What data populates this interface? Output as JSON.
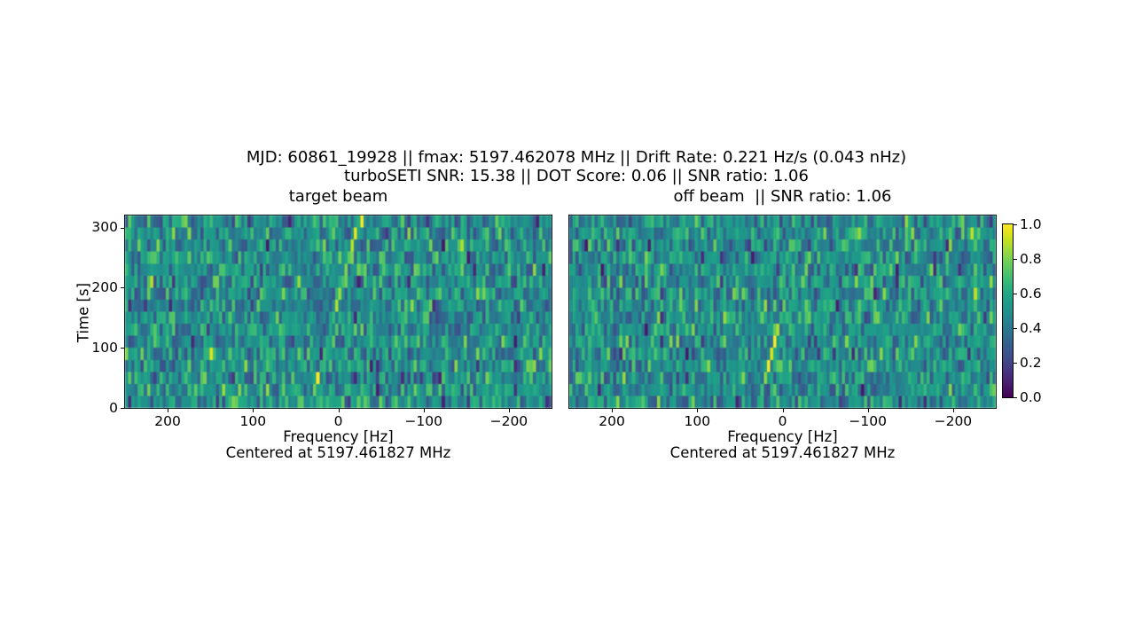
{
  "figure": {
    "title_line1": "MJD: 60861_19928 || fmax: 5197.462078 MHz || Drift Rate: 0.221 Hz/s (0.043 nHz)",
    "title_line2": "turboSETI SNR: 15.38 || DOT Score: 0.06 || SNR ratio: 1.06",
    "background_color": "#ffffff",
    "text_color": "#000000"
  },
  "chart_data": [
    {
      "type": "heatmap",
      "title": "target beam",
      "xlabel": "Frequency [Hz]",
      "xlabel2": "Centered at 5197.461827 MHz",
      "ylabel": "Time [s]",
      "x_tick_labels": [
        "200",
        "100",
        "0",
        "−100",
        "−200"
      ],
      "x_tick_values": [
        200,
        100,
        0,
        -100,
        -200
      ],
      "xlim": [
        250,
        -250
      ],
      "y_tick_labels": [
        "0",
        "100",
        "200",
        "300"
      ],
      "y_tick_values": [
        0,
        100,
        200,
        300
      ],
      "ylim": [
        0,
        320
      ],
      "colormap": "viridis",
      "vmin": 0.0,
      "vmax": 1.0,
      "rows": 16,
      "cols": 136,
      "noise": {
        "mean": 0.52,
        "sd": 0.115,
        "col_bias_sd": 0.035,
        "dark_prob": 0.1,
        "deep_dark_prob": 0.02,
        "bright_prob": 0.02
      },
      "drift_line": {
        "freq_start_hz": 33,
        "freq_end_hz": -24,
        "row_intensity_top_to_bottom": [
          1.0,
          0.97,
          0.9,
          0.75,
          0.62,
          0.7,
          0.85,
          0.88,
          0.66,
          0.6,
          0.62,
          0.68,
          0.64,
          1.0,
          0.78,
          0.6
        ],
        "description": "bright diagonal drifting narrowband signal"
      },
      "seed": 1337
    },
    {
      "type": "heatmap",
      "title": "off beam  || SNR ratio: 1.06",
      "xlabel": "Frequency [Hz]",
      "xlabel2": "Centered at 5197.461827 MHz",
      "ylabel": "",
      "x_tick_labels": [
        "200",
        "100",
        "0",
        "−100",
        "−200"
      ],
      "x_tick_values": [
        200,
        100,
        0,
        -100,
        -200
      ],
      "xlim": [
        250,
        -250
      ],
      "y_tick_labels": [],
      "y_tick_values": [],
      "ylim": [
        0,
        320
      ],
      "colormap": "viridis",
      "vmin": 0.0,
      "vmax": 1.0,
      "rows": 16,
      "cols": 136,
      "noise": {
        "mean": 0.52,
        "sd": 0.115,
        "col_bias_sd": 0.035,
        "dark_prob": 0.1,
        "deep_dark_prob": 0.02,
        "bright_prob": 0.02
      },
      "drift_line": {
        "freq_start_hz": 28,
        "freq_end_hz": -27,
        "row_intensity_top_to_bottom": [
          0.6,
          0.55,
          0.66,
          0.6,
          0.72,
          0.58,
          0.62,
          0.76,
          0.66,
          0.88,
          1.0,
          0.95,
          1.0,
          0.82,
          0.62,
          0.56
        ],
        "description": "bright diagonal drifting narrowband signal"
      },
      "seed": 4242
    }
  ],
  "colorbar": {
    "colormap": "viridis",
    "tick_labels": [
      "1.0",
      "0.8",
      "0.6",
      "0.4",
      "0.2",
      "0.0"
    ],
    "tick_values": [
      1.0,
      0.8,
      0.6,
      0.4,
      0.2,
      0.0
    ],
    "vmin": 0.0,
    "vmax": 1.0
  }
}
